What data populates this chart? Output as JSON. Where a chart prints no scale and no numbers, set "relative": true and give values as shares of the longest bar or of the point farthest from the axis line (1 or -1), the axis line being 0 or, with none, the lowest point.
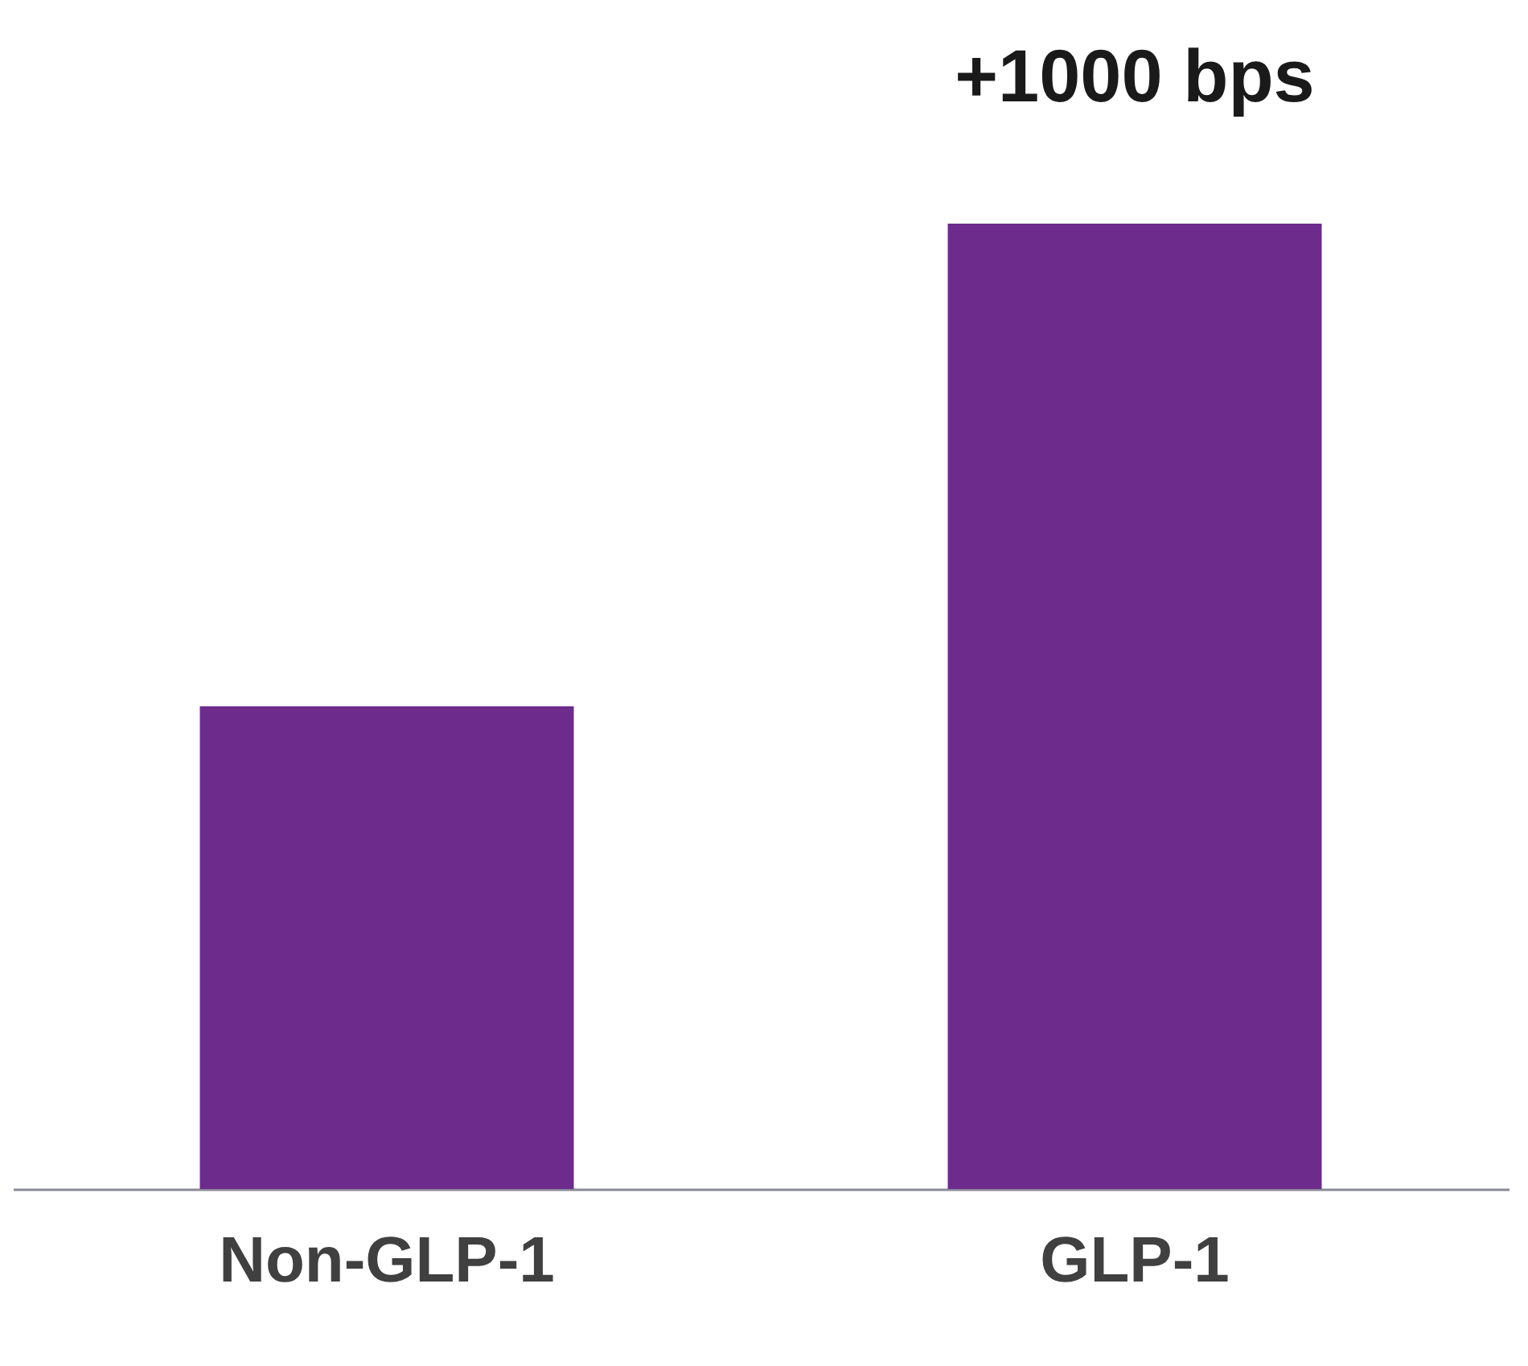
{
  "chart_data": {
    "type": "bar",
    "relative": true,
    "categories": [
      "Non-GLP-1",
      "GLP-1"
    ],
    "values": [
      0.5,
      1.0
    ],
    "color": "#6d2c8c",
    "annotations": [
      "+1000 bps"
    ]
  }
}
